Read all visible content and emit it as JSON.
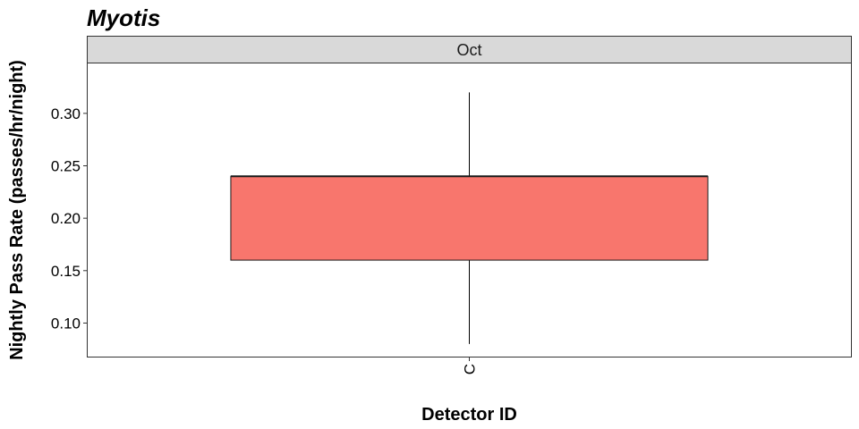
{
  "chart_data": {
    "type": "box",
    "title": "Myotis",
    "facet": "Oct",
    "xlabel": "Detector ID",
    "ylabel": "Nightly Pass Rate (passes/hr/night)",
    "categories": [
      "C"
    ],
    "boxes": [
      {
        "category": "C",
        "whisker_low": 0.08,
        "q1": 0.16,
        "median": 0.24,
        "q3": 0.24,
        "whisker_high": 0.32
      }
    ],
    "yticks": [
      0.1,
      0.15,
      0.2,
      0.25,
      0.3
    ],
    "ytick_labels": [
      "0.10",
      "0.15",
      "0.20",
      "0.25",
      "0.30"
    ],
    "ylim": [
      0.068,
      0.3476
    ],
    "fill_color": "#F8766D",
    "grid": false
  }
}
